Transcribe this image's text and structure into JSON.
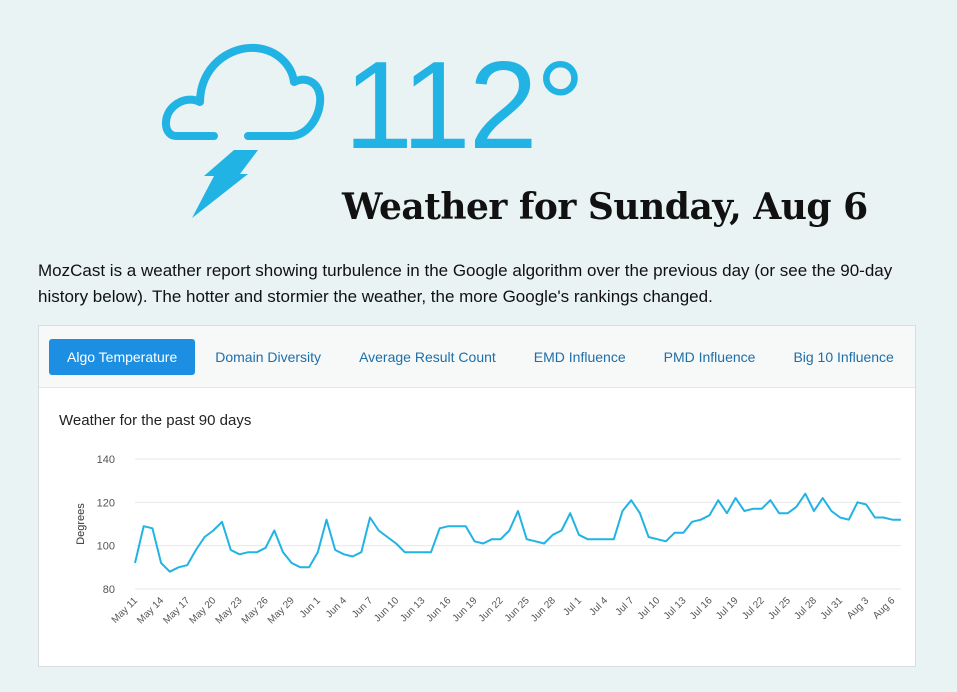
{
  "weather": {
    "temperature": "112°",
    "title": "Weather for Sunday, Aug 6",
    "icon": "storm-cloud-lightning-icon",
    "accent_color": "#21b3e4"
  },
  "intro": "MozCast is a weather report showing turbulence in the Google algorithm over the previous day (or see the 90-day history below). The hotter and stormier the weather, the more Google's rankings changed.",
  "tabs": [
    {
      "label": "Algo Temperature",
      "active": true
    },
    {
      "label": "Domain Diversity",
      "active": false
    },
    {
      "label": "Average Result Count",
      "active": false
    },
    {
      "label": "EMD Influence",
      "active": false
    },
    {
      "label": "PMD Influence",
      "active": false
    },
    {
      "label": "Big 10 Influence",
      "active": false
    }
  ],
  "chart_title": "Weather for the past 90 days",
  "chart_data": {
    "type": "line",
    "title": "Weather for the past 90 days",
    "xlabel": "",
    "ylabel": "Degrees",
    "ylim": [
      80,
      140
    ],
    "yticks": [
      80,
      100,
      120,
      140
    ],
    "grid": true,
    "line_color": "#21b3e4",
    "x_tick_labels": [
      "May 11",
      "May 14",
      "May 17",
      "May 20",
      "May 23",
      "May 26",
      "May 29",
      "Jun 1",
      "Jun 4",
      "Jun 7",
      "Jun 10",
      "Jun 13",
      "Jun 16",
      "Jun 19",
      "Jun 22",
      "Jun 25",
      "Jun 28",
      "Jul 1",
      "Jul 4",
      "Jul 7",
      "Jul 10",
      "Jul 13",
      "Jul 16",
      "Jul 19",
      "Jul 22",
      "Jul 25",
      "Jul 28",
      "Jul 31",
      "Aug 3",
      "Aug 6"
    ],
    "series": [
      {
        "values": [
          92,
          109,
          108,
          92,
          88,
          90,
          91,
          98,
          104,
          107,
          111,
          98,
          96,
          97,
          97,
          99,
          107,
          97,
          92,
          90,
          90,
          97,
          112,
          98,
          96,
          95,
          97,
          113,
          107,
          104,
          101,
          97,
          97,
          97,
          97,
          108,
          109,
          109,
          109,
          102,
          101,
          103,
          103,
          107,
          116,
          103,
          102,
          101,
          105,
          107,
          115,
          105,
          103,
          103,
          103,
          103,
          116,
          121,
          115,
          104,
          103,
          102,
          106,
          106,
          111,
          112,
          114,
          121,
          115,
          122,
          116,
          117,
          117,
          121,
          115,
          115,
          118,
          124,
          116,
          122,
          116,
          113,
          112,
          120,
          119,
          113,
          113,
          112,
          112
        ]
      }
    ]
  }
}
